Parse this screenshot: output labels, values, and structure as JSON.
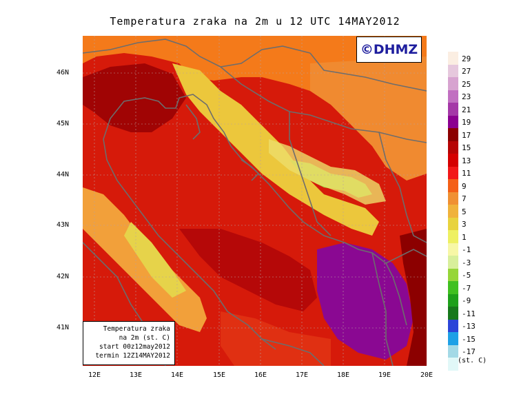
{
  "title": "Temperatura zraka na 2m u 12 UTC 14MAY2012",
  "logo": "©DHMZ",
  "infobox": {
    "line1": "Temperatura zraka",
    "line2": "na 2m (st. C)",
    "line3": "start 00z12may2012",
    "line4": "termin 12Z14MAY2012"
  },
  "lat_labels": [
    "46N",
    "45N",
    "44N",
    "43N",
    "42N",
    "41N"
  ],
  "lon_labels": [
    "12E",
    "13E",
    "14E",
    "15E",
    "16E",
    "17E",
    "18E",
    "19E",
    "20E"
  ],
  "legend": {
    "unit": "(st. C)",
    "labels": [
      "29",
      "27",
      "25",
      "23",
      "21",
      "19",
      "17",
      "15",
      "13",
      "11",
      "9",
      "7",
      "5",
      "3",
      "1",
      "-1",
      "-3",
      "-5",
      "-7",
      "-9",
      "-11",
      "-13",
      "-15",
      "-17"
    ],
    "colors": [
      "#fbeee2",
      "#e6c8dd",
      "#d7a3d0",
      "#c16fc1",
      "#a438a7",
      "#8b0090",
      "#8c0000",
      "#b60404",
      "#d50000",
      "#f21818",
      "#f45f16",
      "#f09032",
      "#f0b23b",
      "#e8d33e",
      "#eef062",
      "#f7f7a6",
      "#d8ef9b",
      "#96d639",
      "#40c020",
      "#1ea01a",
      "#17781b",
      "#2b45d8",
      "#1ea0e6",
      "#a3d9e6",
      "#e1f8f8"
    ]
  }
}
